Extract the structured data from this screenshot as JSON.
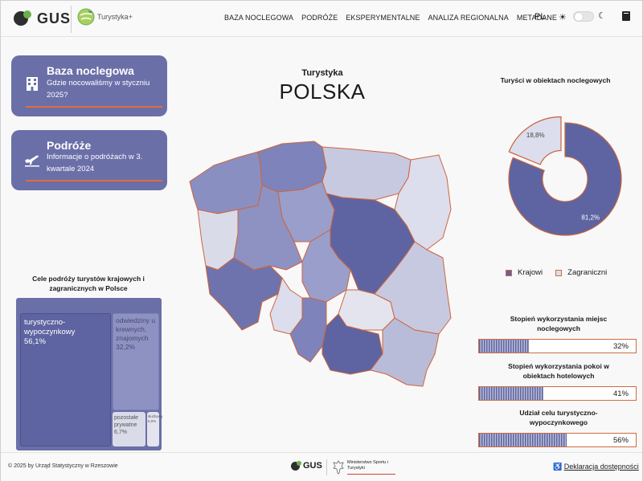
{
  "header": {
    "logo_text": "GUS",
    "brand_text": "Turystyka+",
    "nav": [
      "BAZA NOCLEGOWA",
      "PODRÓŻE",
      "EKSPERYMENTALNE",
      "ANALIZA REGIONALNA",
      "METADANE"
    ],
    "lang": "PL"
  },
  "cards": [
    {
      "title": "Baza noclegowa",
      "sub": "Gdzie nocowaliśmy w styczniu 2025?",
      "icon": "building-icon"
    },
    {
      "title": "Podróże",
      "sub": "Informacje o podróżach w 3. kwartale 2024",
      "icon": "airplane-icon"
    }
  ],
  "treemap": {
    "title": "Cele podróży turystów krajowych i zagranicznych w Polsce",
    "items": [
      {
        "label": "turystyczno-wypoczynkowy",
        "value": "56,1%"
      },
      {
        "label": "odwiedziny u krewnych, znajomych",
        "value": "32,2%"
      },
      {
        "label": "pozostałe prywatne",
        "value": "6,7%"
      },
      {
        "label": "służbowy",
        "value": "5,0%"
      }
    ]
  },
  "center": {
    "subtitle": "Turystyka",
    "title": "POLSKA"
  },
  "pie": {
    "title": "Turyści w obiektach noclegowych",
    "legend": [
      "Krajowi",
      "Zagraniczni"
    ],
    "colors": {
      "krajowi": "#5e64a1",
      "zagraniczni": "#dcdded",
      "stroke": "#c8643c"
    }
  },
  "chart_data": {
    "type": "pie",
    "title": "Turyści w obiektach noclegowych",
    "categories": [
      "Krajowi",
      "Zagraniczni"
    ],
    "values": [
      81.2,
      18.8
    ],
    "labels": [
      "81,2%",
      "18,8%"
    ]
  },
  "bars": [
    {
      "title": "Stopień wykorzystania miejsc noclegowych",
      "value": 32,
      "label": "32%"
    },
    {
      "title": "Stopień wykorzystania pokoi w obiektach hotelowych",
      "value": 41,
      "label": "41%"
    },
    {
      "title": "Udział celu turystyczno-wypoczynkowego",
      "value": 56,
      "label": "56%"
    }
  ],
  "footer": {
    "copyright": "© 2025 by Urząd Statystyczny w Rzeszowie",
    "logo_text": "GUS",
    "ministry": "Ministerstwo Sportu i Turystyki",
    "accessibility": "Deklaracja dostępności"
  }
}
